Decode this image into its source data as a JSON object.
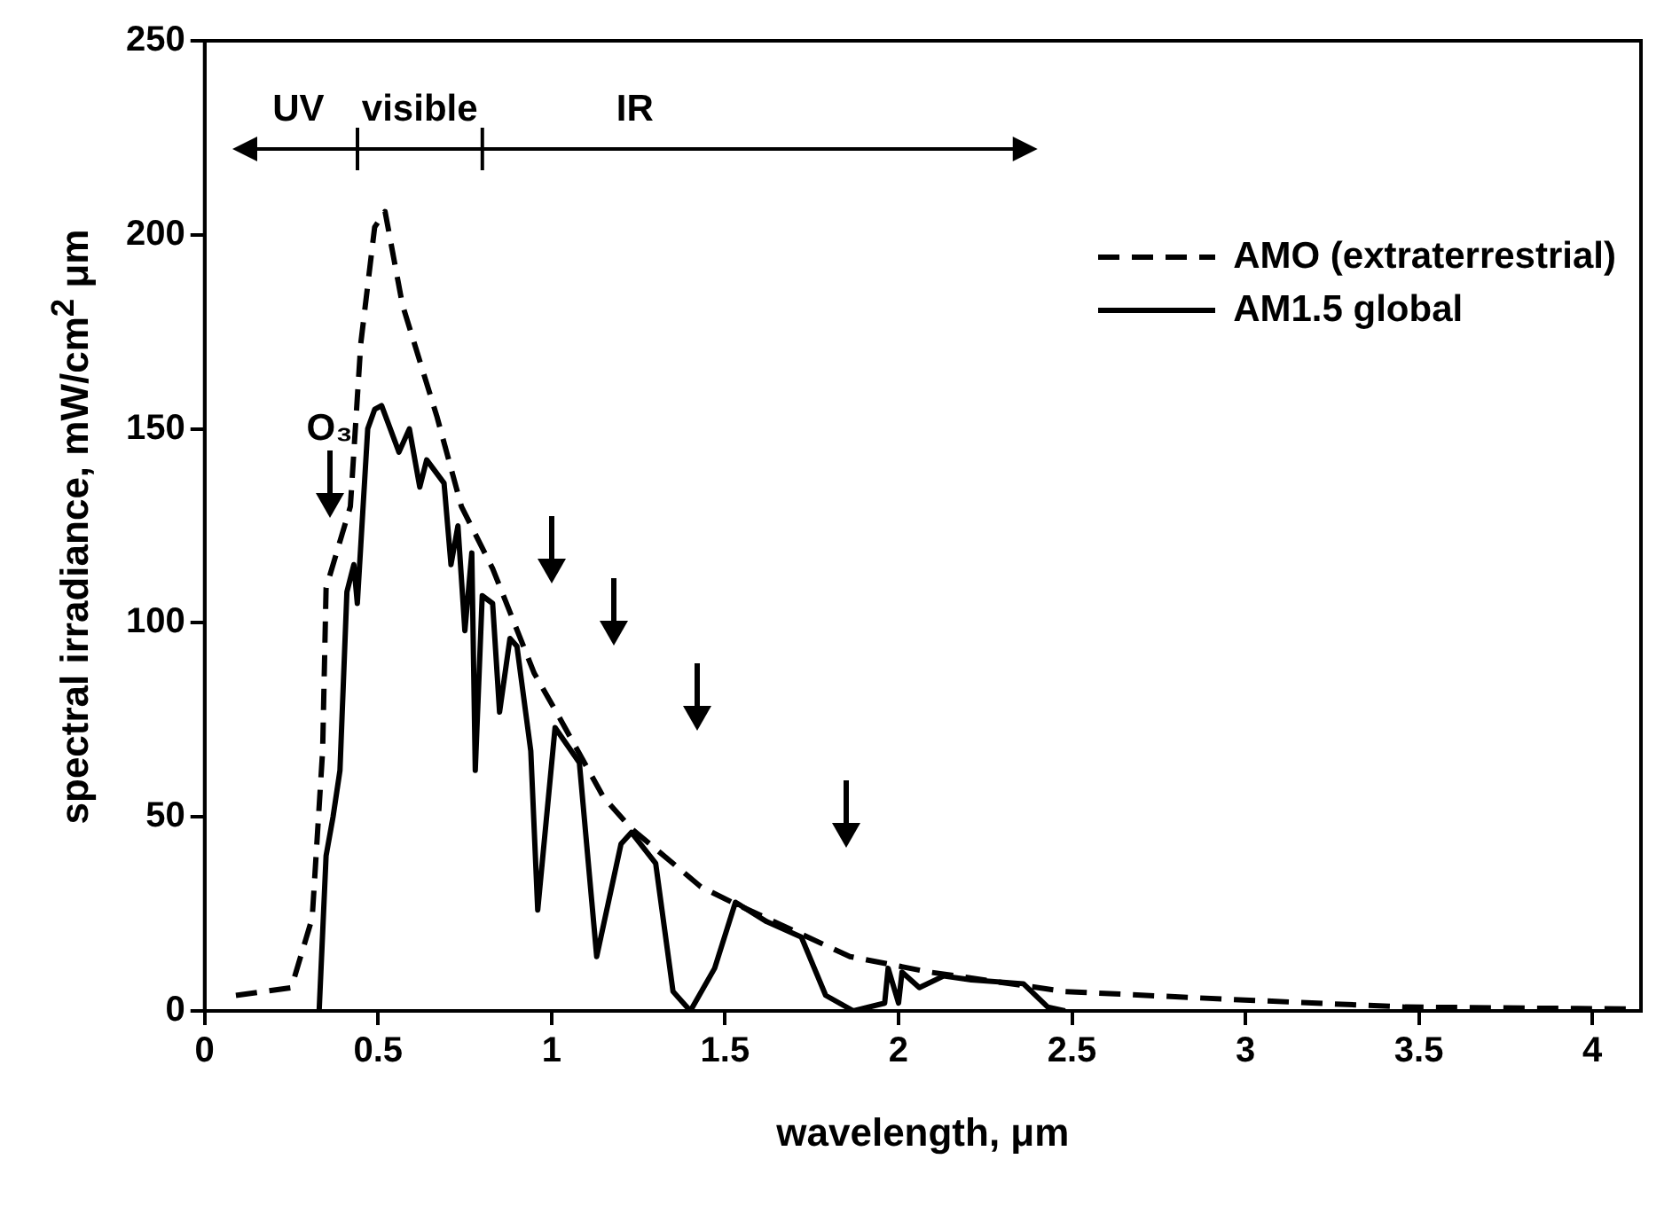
{
  "chart_data": {
    "type": "line",
    "xlabel": "wavelength, μm",
    "ylabel": "spectral irradiance, mW/cm$^{2}$ μm",
    "xlim": [
      0,
      4.14
    ],
    "xticks": [
      0,
      0.5,
      1,
      1.5,
      2,
      2.5,
      3,
      3.5,
      4
    ],
    "ylim": [
      0,
      250
    ],
    "yticks": [
      0,
      50,
      100,
      150,
      200,
      250
    ],
    "grid": false,
    "legend": "top right",
    "marker": "none",
    "series": [
      {
        "name": "AMO (extraterrestrial)",
        "color": "#000000",
        "line_style": "dashed",
        "x": [
          0.09,
          0.25,
          0.31,
          0.34,
          0.35,
          0.42,
          0.45,
          0.49,
          0.52,
          0.57,
          0.67,
          0.74,
          0.83,
          0.95,
          1.02,
          1.15,
          1.23,
          1.43,
          1.52,
          1.86,
          2.09,
          2.48,
          2.95,
          3.46,
          4.12
        ],
        "values": [
          4,
          6,
          24,
          67,
          109,
          130,
          172,
          202,
          206,
          182,
          153,
          130,
          114,
          87,
          76,
          55,
          47,
          32,
          28,
          14,
          10,
          5,
          3,
          1,
          0.5
        ]
      },
      {
        "name": "AM1.5 global",
        "color": "#000000",
        "line_style": "solid",
        "x": [
          0.33,
          0.35,
          0.37,
          0.39,
          0.4,
          0.41,
          0.43,
          0.44,
          0.45,
          0.47,
          0.49,
          0.51,
          0.56,
          0.59,
          0.62,
          0.64,
          0.69,
          0.71,
          0.73,
          0.75,
          0.77,
          0.78,
          0.8,
          0.83,
          0.85,
          0.88,
          0.9,
          0.94,
          0.96,
          1.01,
          1.08,
          1.13,
          1.2,
          1.23,
          1.3,
          1.35,
          1.4,
          1.47,
          1.53,
          1.62,
          1.72,
          1.79,
          1.87,
          1.96,
          1.97,
          2,
          2.01,
          2.06,
          2.13,
          2.21,
          2.36,
          2.43,
          2.48
        ],
        "values": [
          0,
          40,
          50,
          62,
          85,
          108,
          115,
          105,
          120,
          150,
          155,
          156,
          144,
          150,
          135,
          142,
          136,
          115,
          125,
          98,
          118,
          62,
          107,
          105,
          77,
          96,
          94,
          67,
          26,
          73,
          64,
          14,
          43,
          46,
          38,
          5,
          0,
          11,
          28,
          23,
          19,
          4,
          0,
          2,
          11,
          2,
          10,
          6,
          9,
          8,
          7,
          1,
          0
        ]
      }
    ],
    "annotations": [
      "UV",
      "visible",
      "IR",
      "O₃"
    ]
  }
}
